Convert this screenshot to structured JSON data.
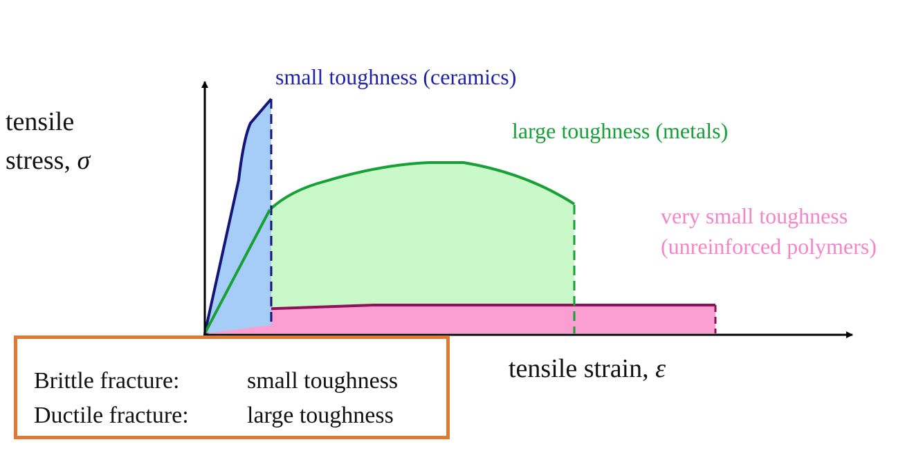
{
  "axes": {
    "y_label_line1": "tensile",
    "y_label_line2_text": "stress, ",
    "y_label_symbol": "σ",
    "x_label_text": "tensile strain, ",
    "x_label_symbol": "ε"
  },
  "curves": {
    "ceramics": {
      "label": "small toughness (ceramics)",
      "stroke": "#14147a",
      "fill": "#a6cdf7",
      "label_color": "#1f22a8"
    },
    "metals": {
      "label": "large toughness (metals)",
      "stroke": "#16a035",
      "fill": "#c9f9c9",
      "label_color": "#16a035"
    },
    "polymers": {
      "label_line1": "very small toughness",
      "label_line2": "(unreinforced polymers)",
      "stroke": "#8a1457",
      "fill": "#fb9fd2",
      "label_color": "#f584c8"
    }
  },
  "legend": {
    "border_color": "#e07a32",
    "rows": [
      {
        "term": "Brittle fracture:",
        "value": "small toughness"
      },
      {
        "term": "Ductile fracture:",
        "value": "large toughness"
      }
    ]
  }
}
